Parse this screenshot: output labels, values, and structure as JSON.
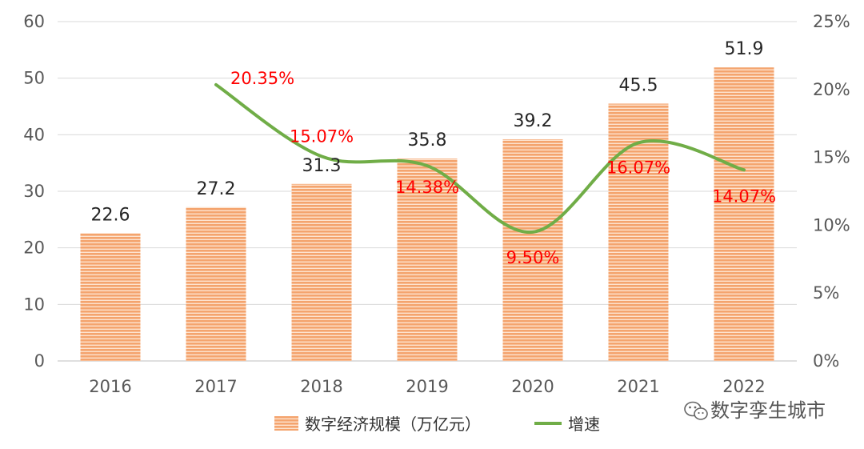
{
  "chart_data": {
    "type": "bar",
    "categories": [
      "2016",
      "2017",
      "2018",
      "2019",
      "2020",
      "2021",
      "2022"
    ],
    "series": [
      {
        "name": "数字经济规模（万亿元）",
        "type": "bar",
        "axis": "left",
        "values": [
          22.6,
          27.2,
          31.3,
          35.8,
          39.2,
          45.5,
          51.9
        ],
        "labels": [
          "22.6",
          "27.2",
          "31.3",
          "35.8",
          "39.2",
          "45.5",
          "51.9"
        ]
      },
      {
        "name": "增速",
        "type": "line",
        "axis": "right",
        "values": [
          null,
          20.35,
          15.07,
          14.38,
          9.5,
          16.07,
          14.07
        ],
        "labels": [
          "",
          "20.35%",
          "15.07%",
          "14.38%",
          "9.50%",
          "16.07%",
          "14.07%"
        ]
      }
    ],
    "y_left": {
      "lim": [
        0,
        60
      ],
      "ticks": [
        "0",
        "10",
        "20",
        "30",
        "40",
        "50",
        "60"
      ]
    },
    "y_right": {
      "lim": [
        0,
        25
      ],
      "ticks": [
        "0%",
        "5%",
        "10%",
        "15%",
        "20%",
        "25%"
      ]
    },
    "grid": true,
    "legend_position": "bottom",
    "colors": {
      "bar": "#F4A46E",
      "bar_stripe": "#FDE3CF",
      "line": "#70AD47",
      "rate_label": "#FF0000",
      "grid": "#D9D9D9"
    }
  },
  "watermark": {
    "icon": "wechat-icon",
    "text": "数字孪生城市"
  }
}
